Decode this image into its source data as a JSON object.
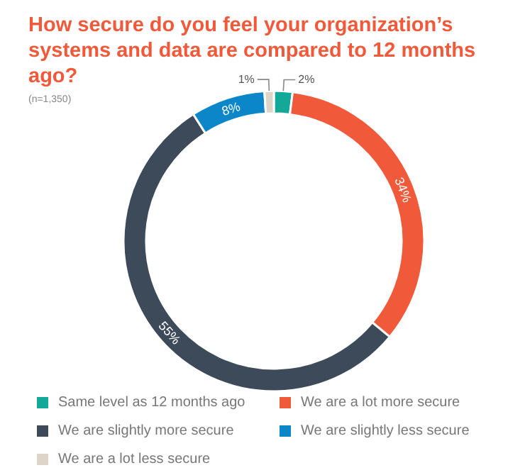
{
  "chart_data": {
    "type": "donut",
    "title": "How secure do you feel your organization’s systems and data are compared to 12 months ago?",
    "subtitle": "(n=1,350)",
    "categories": [
      "Same level as 12 months ago",
      "We are a lot more secure",
      "We are slightly more secure",
      "We are slightly less secure",
      "We are a lot less secure"
    ],
    "values": [
      2,
      34,
      55,
      8,
      1
    ],
    "colors": [
      "#13a898",
      "#f05a3a",
      "#3d4a5a",
      "#0a86c9",
      "#ddd6c8"
    ],
    "value_labels": [
      "2%",
      "34%",
      "55%",
      "8%",
      "1%"
    ],
    "legend": "bottom"
  }
}
